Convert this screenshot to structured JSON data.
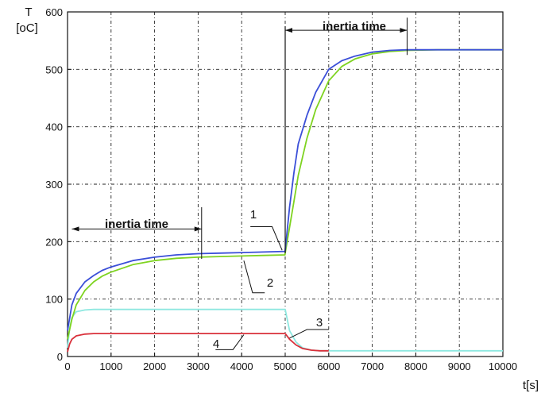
{
  "chart_data": {
    "type": "line",
    "ylabel": "T",
    "yunit": "[oC]",
    "xlabel": "t[s]",
    "xlim": [
      0,
      10000
    ],
    "ylim": [
      0,
      600
    ],
    "xticks": [
      0,
      1000,
      2000,
      3000,
      4000,
      5000,
      6000,
      7000,
      8000,
      9000,
      10000
    ],
    "yticks": [
      0,
      100,
      200,
      300,
      400,
      500,
      600
    ],
    "grid": true,
    "series": [
      {
        "name": "1",
        "color": "#3b4fd8",
        "x": [
          0,
          100,
          200,
          400,
          600,
          800,
          1000,
          1500,
          2000,
          2500,
          3000,
          3500,
          4000,
          4500,
          4995,
          5000,
          5100,
          5200,
          5300,
          5500,
          5700,
          6000,
          6300,
          6600,
          7000,
          7400,
          7800,
          8500,
          9000,
          10000
        ],
        "y": [
          45,
          90,
          110,
          130,
          141,
          150,
          156,
          167,
          173,
          177,
          179,
          180,
          181,
          182,
          183,
          185,
          260,
          320,
          370,
          420,
          460,
          500,
          515,
          523,
          530,
          533,
          534,
          534,
          534,
          534
        ]
      },
      {
        "name": "2",
        "color": "#7ed320",
        "x": [
          0,
          100,
          200,
          400,
          600,
          800,
          1000,
          1500,
          2000,
          2500,
          3000,
          3500,
          4000,
          4500,
          4995,
          5000,
          5100,
          5200,
          5300,
          5500,
          5700,
          6000,
          6300,
          6600,
          7000,
          7400,
          7800,
          8500,
          9000,
          10000
        ],
        "y": [
          30,
          65,
          90,
          115,
          130,
          140,
          147,
          160,
          167,
          171,
          173,
          174,
          175,
          176,
          177,
          180,
          225,
          270,
          315,
          380,
          430,
          480,
          505,
          518,
          527,
          531,
          533,
          534,
          534,
          534
        ]
      },
      {
        "name": "3",
        "color": "#8ee8e0",
        "x": [
          0,
          50,
          100,
          200,
          400,
          600,
          1000,
          2000,
          3000,
          4000,
          4995,
          5000,
          5100,
          5250,
          5400,
          5600,
          5800,
          6000,
          6500,
          7000,
          8000,
          9000,
          10000
        ],
        "y": [
          15,
          50,
          68,
          78,
          81,
          82,
          82,
          82,
          82,
          82,
          82,
          82,
          45,
          25,
          15,
          11,
          10,
          10,
          10,
          10,
          10,
          10,
          10
        ]
      },
      {
        "name": "4",
        "color": "#d9303a",
        "x": [
          0,
          50,
          100,
          200,
          400,
          600,
          1000,
          2000,
          3000,
          4000,
          4995,
          5000,
          5100,
          5250,
          5400,
          5600,
          5800,
          6000
        ],
        "y": [
          8,
          22,
          30,
          36,
          39,
          40,
          40,
          40,
          40,
          40,
          40,
          40,
          30,
          20,
          14,
          11,
          10,
          10
        ]
      }
    ],
    "annotations": [
      {
        "text": "inertia time",
        "x_start": 100,
        "x_end": 3080,
        "y": 222
      },
      {
        "text": "inertia time",
        "x_start": 5000,
        "x_end": 7800,
        "y": 568
      }
    ],
    "curve_labels": [
      "1",
      "2",
      "3",
      "4"
    ]
  }
}
